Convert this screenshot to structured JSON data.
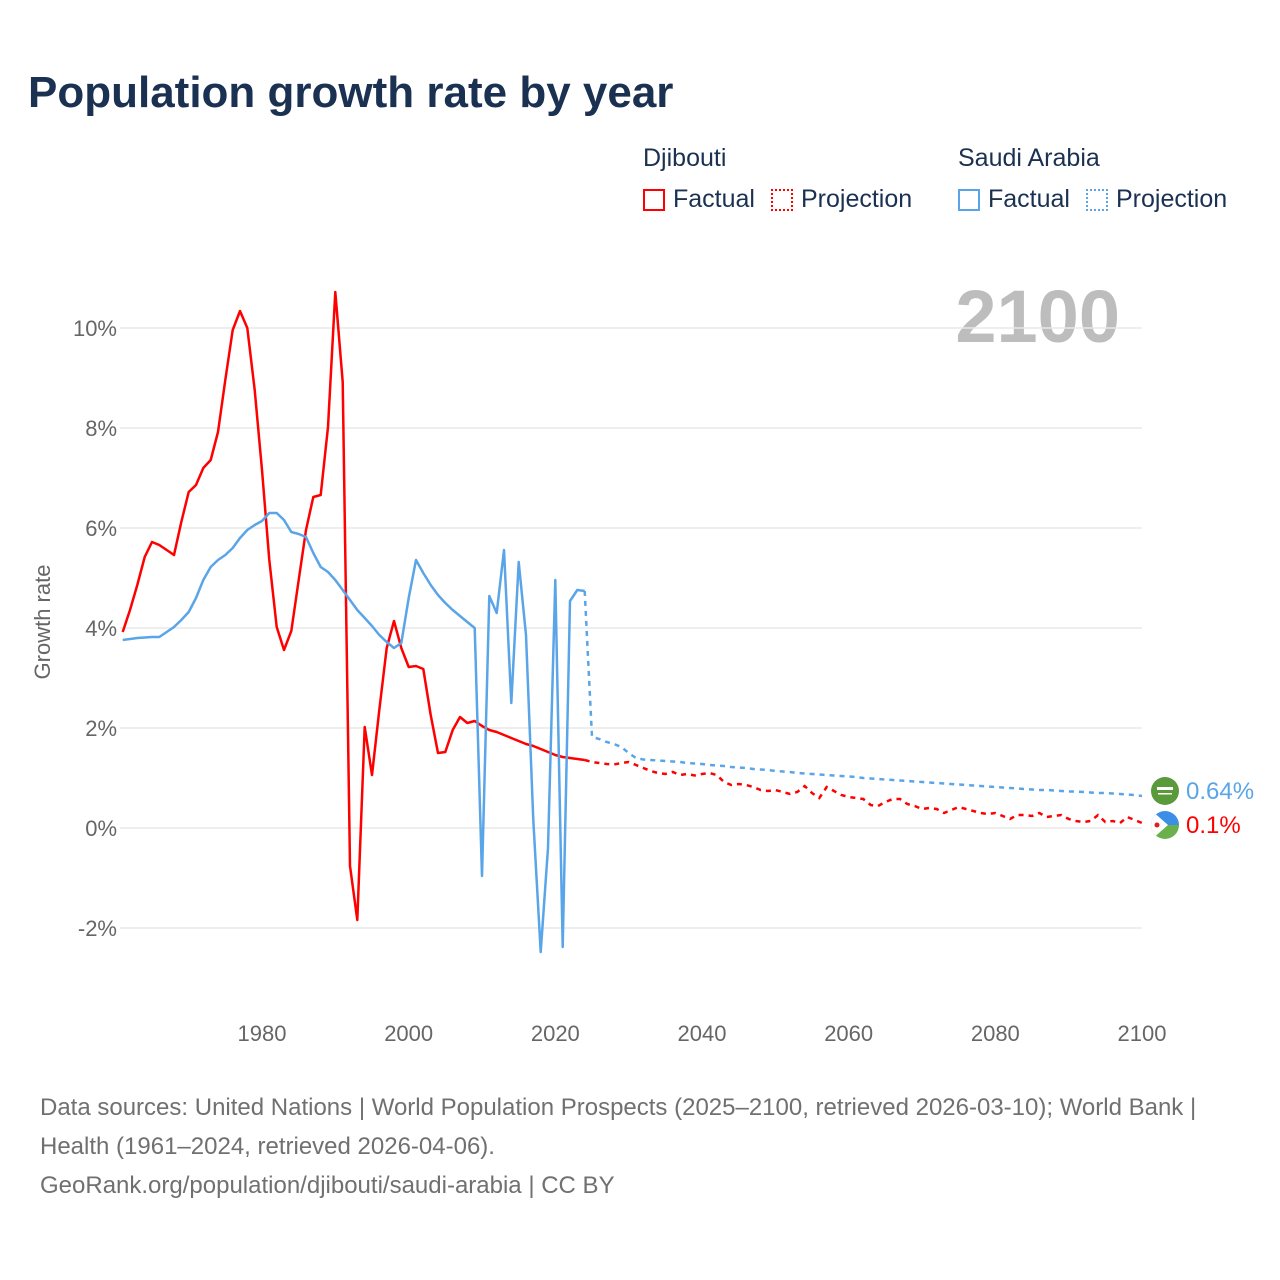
{
  "title": "Population growth rate by year",
  "legend": [
    {
      "country": "Djibouti",
      "color": "#ff0000",
      "factual_label": "Factual",
      "projection_label": "Projection"
    },
    {
      "country": "Saudi Arabia",
      "color": "#5aa5e8",
      "factual_label": "Factual",
      "projection_label": "Projection"
    }
  ],
  "year_watermark": "2100",
  "footer": {
    "sources": "Data sources: United Nations | World Population Prospects (2025–2100, retrieved 2026-03-10); World Bank | Health (1961–2024, retrieved 2026-04-06).",
    "attribution": "GeoRank.org/population/djibouti/saudi-arabia | CC BY"
  },
  "chart_data": {
    "type": "line",
    "title": "Population growth rate by year",
    "xlabel": "",
    "ylabel": "Growth rate",
    "xlim": [
      1961,
      2100
    ],
    "ylim": [
      -3,
      11
    ],
    "x_ticks": [
      1980,
      2000,
      2020,
      2040,
      2060,
      2080,
      2100
    ],
    "y_ticks": [
      -2,
      0,
      2,
      4,
      6,
      8,
      10
    ],
    "y_tick_labels": [
      "-2%",
      "0%",
      "2%",
      "4%",
      "6%",
      "8%",
      "10%"
    ],
    "grid": true,
    "series": [
      {
        "name": "Djibouti",
        "color": "#ff0000",
        "end_label": "0.1%",
        "factual": {
          "start": 1961,
          "values": [
            3.92,
            4.36,
            4.86,
            5.42,
            5.72,
            5.66,
            5.56,
            5.46,
            6.12,
            6.72,
            6.86,
            7.2,
            7.36,
            7.92,
            8.96,
            9.96,
            10.34,
            10.0,
            8.76,
            7.16,
            5.36,
            4.02,
            3.56,
            3.94,
            4.96,
            5.96,
            6.62,
            6.66,
            8.02,
            10.72,
            8.92,
            -0.76,
            -1.84,
            2.02,
            1.06,
            2.36,
            3.6,
            4.14,
            3.6,
            3.22,
            3.24,
            3.18,
            2.26,
            1.5,
            1.52,
            1.96,
            2.22,
            2.1,
            2.14,
            2.04,
            1.96,
            1.92,
            1.86,
            1.8,
            1.74,
            1.68,
            1.64,
            1.58,
            1.52,
            1.46,
            1.42,
            1.4,
            1.38,
            1.36
          ]
        },
        "projection": {
          "start": 2024,
          "values": [
            1.36,
            1.32,
            1.3,
            1.28,
            1.27,
            1.3,
            1.32,
            1.26,
            1.2,
            1.14,
            1.1,
            1.08,
            1.12,
            1.06,
            1.08,
            1.05,
            1.08,
            1.1,
            1.06,
            0.92,
            0.86,
            0.88,
            0.86,
            0.82,
            0.76,
            0.74,
            0.76,
            0.72,
            0.68,
            0.72,
            0.84,
            0.7,
            0.6,
            0.82,
            0.74,
            0.66,
            0.62,
            0.6,
            0.58,
            0.46,
            0.44,
            0.52,
            0.58,
            0.58,
            0.48,
            0.44,
            0.38,
            0.4,
            0.38,
            0.3,
            0.36,
            0.42,
            0.38,
            0.34,
            0.3,
            0.28,
            0.3,
            0.24,
            0.18,
            0.26,
            0.26,
            0.24,
            0.3,
            0.22,
            0.24,
            0.26,
            0.18,
            0.14,
            0.12,
            0.14,
            0.26,
            0.12,
            0.14,
            0.1,
            0.22,
            0.16,
            0.1
          ]
        }
      },
      {
        "name": "Saudi Arabia",
        "color": "#5aa5e8",
        "end_label": "0.64%",
        "factual": {
          "start": 1961,
          "values": [
            3.76,
            3.78,
            3.8,
            3.81,
            3.82,
            3.82,
            3.92,
            4.02,
            4.16,
            4.32,
            4.6,
            4.96,
            5.22,
            5.36,
            5.46,
            5.6,
            5.8,
            5.96,
            6.06,
            6.14,
            6.3,
            6.3,
            6.16,
            5.92,
            5.88,
            5.82,
            5.5,
            5.22,
            5.12,
            4.96,
            4.76,
            4.56,
            4.36,
            4.2,
            4.04,
            3.86,
            3.72,
            3.6,
            3.7,
            4.6,
            5.36,
            5.1,
            4.86,
            4.66,
            4.5,
            4.36,
            4.24,
            4.12,
            4.0,
            -0.96,
            4.64,
            4.3,
            5.56,
            2.5,
            5.32,
            3.86,
            0.16,
            -2.48,
            -0.4,
            4.96,
            -2.38,
            4.54,
            4.76,
            4.74
          ]
        },
        "projection": {
          "start": 2024,
          "values": [
            4.74,
            1.82,
            1.78,
            1.72,
            1.68,
            1.62,
            1.5,
            1.4,
            1.37,
            1.36,
            1.35,
            1.34,
            1.33,
            1.32,
            1.3,
            1.29,
            1.28,
            1.26,
            1.25,
            1.24,
            1.22,
            1.21,
            1.2,
            1.18,
            1.17,
            1.16,
            1.14,
            1.13,
            1.12,
            1.1,
            1.09,
            1.08,
            1.07,
            1.06,
            1.05,
            1.04,
            1.03,
            1.02,
            1.0,
            0.99,
            0.98,
            0.97,
            0.96,
            0.95,
            0.94,
            0.93,
            0.92,
            0.91,
            0.9,
            0.89,
            0.88,
            0.87,
            0.86,
            0.85,
            0.84,
            0.83,
            0.82,
            0.81,
            0.8,
            0.79,
            0.78,
            0.77,
            0.76,
            0.76,
            0.75,
            0.74,
            0.73,
            0.73,
            0.72,
            0.71,
            0.7,
            0.7,
            0.69,
            0.68,
            0.67,
            0.66,
            0.64
          ]
        }
      }
    ]
  }
}
